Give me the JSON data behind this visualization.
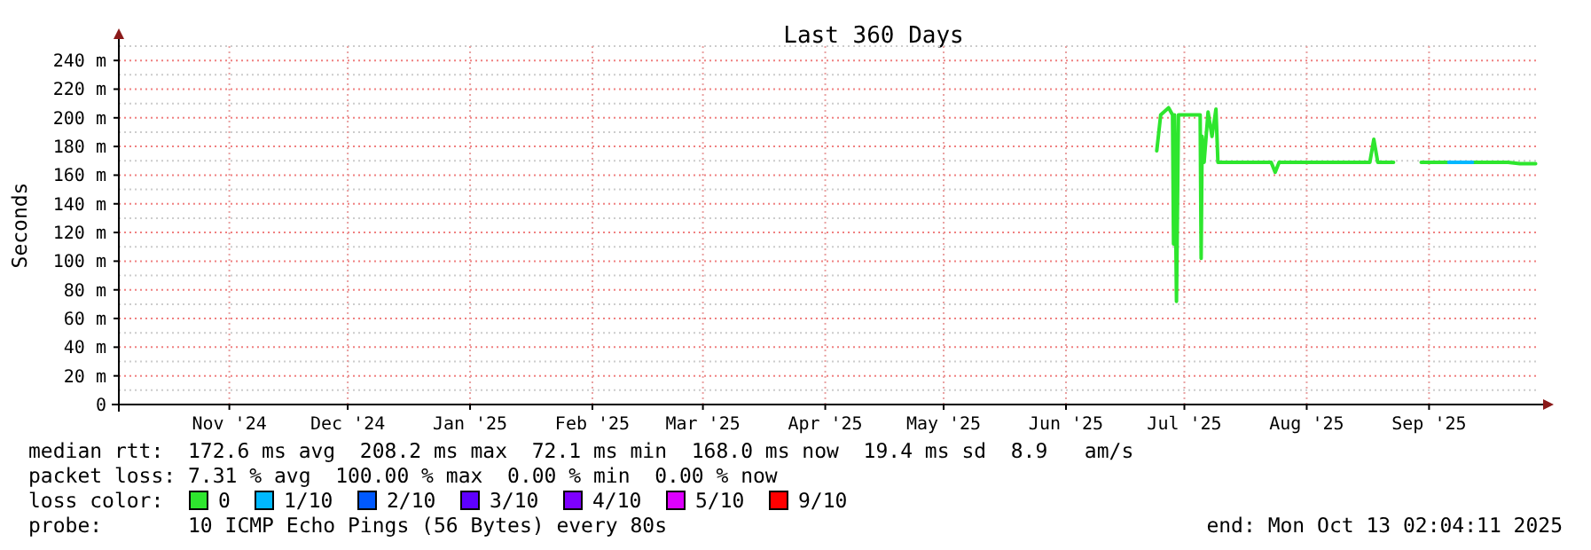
{
  "chart_data": {
    "type": "line",
    "title": "Last 360 Days",
    "ylabel": "Seconds",
    "legend_title": "loss color:",
    "legend": "bottom",
    "grid": true,
    "marker": "none",
    "line_style": "solid",
    "xlim": [
      "2024-10-18",
      "2025-10-13"
    ],
    "xticks": [
      {
        "value": "2024-11-15",
        "label": "Nov '24"
      },
      {
        "value": "2024-12-15",
        "label": "Dec '24"
      },
      {
        "value": "2025-01-15",
        "label": "Jan '25"
      },
      {
        "value": "2025-02-15",
        "label": "Feb '25"
      },
      {
        "value": "2025-03-15",
        "label": "Mar '25"
      },
      {
        "value": "2025-04-15",
        "label": "Apr '25"
      },
      {
        "value": "2025-05-15",
        "label": "May '25"
      },
      {
        "value": "2025-06-15",
        "label": "Jun '25"
      },
      {
        "value": "2025-07-15",
        "label": "Jul '25"
      },
      {
        "value": "2025-08-15",
        "label": "Aug '25"
      },
      {
        "value": "2025-09-15",
        "label": "Sep '25"
      }
    ],
    "ylim": [
      0,
      250
    ],
    "yticks": [
      0,
      {
        "value": 20,
        "label": "20 m"
      },
      {
        "value": 40,
        "label": "40 m"
      },
      {
        "value": 60,
        "label": "60 m"
      },
      {
        "value": 80,
        "label": "80 m"
      },
      {
        "value": 100,
        "label": "100 m"
      },
      {
        "value": 120,
        "label": "120 m"
      },
      {
        "value": 140,
        "label": "140 m"
      },
      {
        "value": 160,
        "label": "160 m"
      },
      {
        "value": 180,
        "label": "180 m"
      },
      {
        "value": 200,
        "label": "200 m"
      },
      {
        "value": 220,
        "label": "220 m"
      },
      {
        "value": 240,
        "label": "240 m"
      }
    ],
    "series": [
      {
        "name": "0",
        "color": "#2ee62e",
        "x": [
          "2025-07-08",
          "2025-07-09",
          "2025-07-11",
          "2025-07-12",
          "2025-07-12T06:00",
          "2025-07-12T12:00",
          "2025-07-13",
          "2025-07-13T12:00",
          "2025-07-19",
          "2025-07-19T06:00",
          "2025-07-19T12:00",
          "2025-07-20",
          "2025-07-21",
          "2025-07-22",
          "2025-07-23",
          "2025-07-23T12:00",
          "2025-08-06",
          "2025-08-07",
          "2025-08-08",
          "2025-08-31",
          "2025-09-01",
          "2025-09-02",
          "2025-09-06",
          "2025-09-10",
          "2025-09-13",
          "2025-09-20",
          "2025-09-23",
          "2025-09-26",
          "2025-10-05",
          "2025-10-08",
          "2025-10-12"
        ],
        "values": [
          177,
          202,
          207,
          202,
          112,
          202,
          72,
          202,
          202,
          102,
          187,
          169,
          204,
          187,
          206,
          169,
          169,
          162,
          169,
          169,
          185,
          169,
          169,
          null,
          169,
          169,
          null,
          169,
          169,
          168,
          168
        ]
      },
      {
        "name": "1/10",
        "color": "#00b8ff",
        "x": [
          "2025-09-20",
          "2025-09-23",
          "2025-09-26"
        ],
        "values": [
          169,
          169,
          169
        ]
      },
      {
        "name": "2/10",
        "color": "#0059ff"
      },
      {
        "name": "3/10",
        "color": "#5e00ff"
      },
      {
        "name": "4/10",
        "color": "#7e00ff"
      },
      {
        "name": "5/10",
        "color": "#dd00ff"
      },
      {
        "name": "9/10",
        "color": "#ff0000"
      }
    ],
    "annotations": [
      "median rtt:  172.6 ms avg  208.2 ms max  72.1 ms min  168.0 ms now  19.4 ms sd  8.9   am/s",
      "packet loss: 7.31 % avg  100.00 % max  0.00 % min  0.00 % now",
      "probe:       10 ICMP Echo Pings (56 Bytes) every 80s",
      "end: Mon Oct 13 02:04:11 2025"
    ]
  }
}
